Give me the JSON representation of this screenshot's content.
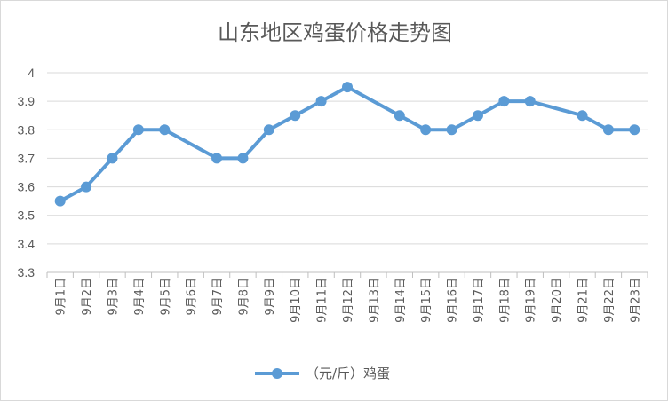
{
  "chart_data": {
    "type": "line",
    "title": "山东地区鸡蛋价格走势图",
    "categories": [
      "9月1日",
      "9月2日",
      "9月3日",
      "9月4日",
      "9月5日",
      "9月6日",
      "9月7日",
      "9月8日",
      "9月9日",
      "9月10日",
      "9月11日",
      "9月12日",
      "9月13日",
      "9月14日",
      "9月15日",
      "9月16日",
      "9月17日",
      "9月18日",
      "9月19日",
      "9月20日",
      "9月21日",
      "9月22日",
      "9月23日"
    ],
    "series": [
      {
        "name": "（元/斤）鸡蛋",
        "values": [
          3.55,
          3.6,
          3.7,
          3.8,
          3.8,
          null,
          3.7,
          3.7,
          3.8,
          3.85,
          3.9,
          3.95,
          null,
          3.85,
          3.8,
          3.8,
          3.85,
          3.9,
          3.9,
          null,
          3.85,
          3.8,
          3.8
        ],
        "color": "#5b9bd5"
      }
    ],
    "yticks": [
      "3.3",
      "3.4",
      "3.5",
      "3.6",
      "3.7",
      "3.8",
      "3.9",
      "4"
    ],
    "ylim": [
      3.3,
      4
    ],
    "grid": true,
    "legend": "bottom",
    "connect_gaps": true
  }
}
